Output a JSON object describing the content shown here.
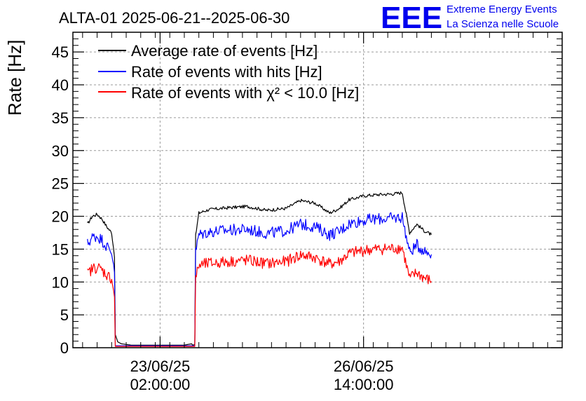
{
  "chart_data": {
    "type": "line",
    "title": "ALTA-01 2025-06-21--2025-06-30",
    "ylabel": "Rate [Hz]",
    "xlabel": "",
    "x_range": [
      "2025-06-21T14:00",
      "2025-06-30T00:00"
    ],
    "ylim": [
      0,
      48
    ],
    "yticks": [
      0,
      5,
      10,
      15,
      20,
      25,
      30,
      35,
      40,
      45
    ],
    "xticks": [
      {
        "at": "2025-06-23T02:00",
        "line1": "23/06/25",
        "line2": "02:00:00"
      },
      {
        "at": "2025-06-26T14:00",
        "line1": "26/06/25",
        "line2": "14:00:00"
      }
    ],
    "grid": true,
    "legend_position": "top-left",
    "series": [
      {
        "name": "Average rate of events [Hz]",
        "color": "#000000",
        "points": [
          [
            "2025-06-21T20:00",
            18.8
          ],
          [
            "2025-06-21T22:00",
            20.0
          ],
          [
            "2025-06-22T00:00",
            20.3
          ],
          [
            "2025-06-22T02:00",
            19.6
          ],
          [
            "2025-06-22T04:00",
            18.4
          ],
          [
            "2025-06-22T06:00",
            17.5
          ],
          [
            "2025-06-22T07:10",
            14.0
          ],
          [
            "2025-06-22T07:30",
            2.0
          ],
          [
            "2025-06-22T08:30",
            0.9
          ],
          [
            "2025-06-22T10:00",
            0.6
          ],
          [
            "2025-06-22T14:00",
            0.4
          ],
          [
            "2025-06-23T00:00",
            0.4
          ],
          [
            "2025-06-23T12:00",
            0.4
          ],
          [
            "2025-06-23T15:00",
            0.6
          ],
          [
            "2025-06-23T15:30",
            0.4
          ],
          [
            "2025-06-23T16:20",
            0.5
          ],
          [
            "2025-06-23T16:40",
            17.0
          ],
          [
            "2025-06-23T18:00",
            20.5
          ],
          [
            "2025-06-23T22:00",
            21.0
          ],
          [
            "2025-06-24T06:00",
            21.3
          ],
          [
            "2025-06-24T14:00",
            21.5
          ],
          [
            "2025-06-24T22:00",
            20.9
          ],
          [
            "2025-06-25T06:00",
            21.2
          ],
          [
            "2025-06-25T12:00",
            22.4
          ],
          [
            "2025-06-25T18:00",
            22.0
          ],
          [
            "2025-06-26T00:00",
            20.5
          ],
          [
            "2025-06-26T04:00",
            21.2
          ],
          [
            "2025-06-26T08:00",
            22.5
          ],
          [
            "2025-06-26T14:00",
            23.1
          ],
          [
            "2025-06-26T20:00",
            23.3
          ],
          [
            "2025-06-27T02:00",
            23.4
          ],
          [
            "2025-06-27T06:00",
            23.6
          ],
          [
            "2025-06-27T09:00",
            17.5
          ],
          [
            "2025-06-27T12:00",
            18.8
          ],
          [
            "2025-06-27T15:00",
            17.8
          ],
          [
            "2025-06-27T18:00",
            17.2
          ]
        ]
      },
      {
        "name": "Rate of events with hits [Hz]",
        "color": "#0000ff",
        "points": [
          [
            "2025-06-21T20:00",
            15.8
          ],
          [
            "2025-06-21T22:00",
            16.8
          ],
          [
            "2025-06-22T00:00",
            17.0
          ],
          [
            "2025-06-22T02:00",
            16.4
          ],
          [
            "2025-06-22T04:00",
            15.4
          ],
          [
            "2025-06-22T06:00",
            14.6
          ],
          [
            "2025-06-22T07:10",
            12.0
          ],
          [
            "2025-06-22T07:30",
            0.3
          ],
          [
            "2025-06-23T16:20",
            0.3
          ],
          [
            "2025-06-23T16:40",
            14.5
          ],
          [
            "2025-06-23T18:00",
            17.2
          ],
          [
            "2025-06-23T22:00",
            17.6
          ],
          [
            "2025-06-24T06:00",
            17.9
          ],
          [
            "2025-06-24T14:00",
            18.0
          ],
          [
            "2025-06-24T22:00",
            17.4
          ],
          [
            "2025-06-25T06:00",
            17.8
          ],
          [
            "2025-06-25T12:00",
            18.8
          ],
          [
            "2025-06-25T18:00",
            18.4
          ],
          [
            "2025-06-26T00:00",
            17.2
          ],
          [
            "2025-06-26T04:00",
            17.7
          ],
          [
            "2025-06-26T08:00",
            18.9
          ],
          [
            "2025-06-26T14:00",
            19.4
          ],
          [
            "2025-06-26T20:00",
            19.6
          ],
          [
            "2025-06-27T02:00",
            19.7
          ],
          [
            "2025-06-27T06:00",
            19.9
          ],
          [
            "2025-06-27T09:00",
            14.5
          ],
          [
            "2025-06-27T12:00",
            15.6
          ],
          [
            "2025-06-27T15:00",
            14.8
          ],
          [
            "2025-06-27T18:00",
            14.2
          ]
        ]
      },
      {
        "name": "Rate of events with χ² < 10.0 [Hz]",
        "color": "#ff0000",
        "points": [
          [
            "2025-06-21T20:00",
            11.2
          ],
          [
            "2025-06-21T22:00",
            12.0
          ],
          [
            "2025-06-22T00:00",
            12.3
          ],
          [
            "2025-06-22T02:00",
            11.8
          ],
          [
            "2025-06-22T04:00",
            11.1
          ],
          [
            "2025-06-22T06:00",
            10.5
          ],
          [
            "2025-06-22T07:10",
            8.0
          ],
          [
            "2025-06-22T07:30",
            0.2
          ],
          [
            "2025-06-23T16:20",
            0.2
          ],
          [
            "2025-06-23T16:40",
            10.5
          ],
          [
            "2025-06-23T18:00",
            12.5
          ],
          [
            "2025-06-23T22:00",
            12.8
          ],
          [
            "2025-06-24T06:00",
            13.1
          ],
          [
            "2025-06-24T14:00",
            13.3
          ],
          [
            "2025-06-24T22:00",
            12.8
          ],
          [
            "2025-06-25T06:00",
            13.1
          ],
          [
            "2025-06-25T12:00",
            14.1
          ],
          [
            "2025-06-25T18:00",
            13.7
          ],
          [
            "2025-06-26T00:00",
            12.7
          ],
          [
            "2025-06-26T04:00",
            13.1
          ],
          [
            "2025-06-26T08:00",
            14.3
          ],
          [
            "2025-06-26T14:00",
            14.8
          ],
          [
            "2025-06-26T20:00",
            15.0
          ],
          [
            "2025-06-27T02:00",
            15.1
          ],
          [
            "2025-06-27T06:00",
            15.2
          ],
          [
            "2025-06-27T09:00",
            10.5
          ],
          [
            "2025-06-27T12:00",
            11.4
          ],
          [
            "2025-06-27T15:00",
            10.6
          ],
          [
            "2025-06-27T18:00",
            10.1
          ]
        ]
      }
    ]
  },
  "logo": {
    "mark": "EEE",
    "line1": "Extreme Energy Events",
    "line2": "La Scienza nelle Scuole",
    "color": "#0000ee"
  }
}
